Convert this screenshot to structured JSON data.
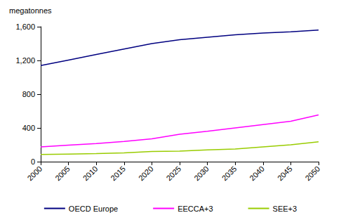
{
  "chart_data": {
    "type": "line",
    "y_label": "megatonnes",
    "categories": [
      "2000",
      "2005",
      "2010",
      "2015",
      "2020",
      "2025",
      "2030",
      "2035",
      "2040",
      "2045",
      "2050"
    ],
    "series": [
      {
        "name": "OECD Europe",
        "color": "#000080",
        "values": [
          1140,
          1205,
          1270,
          1335,
          1400,
          1445,
          1475,
          1505,
          1525,
          1540,
          1560
        ]
      },
      {
        "name": "EECCA+3",
        "color": "#ff00ff",
        "values": [
          175,
          195,
          215,
          240,
          270,
          325,
          360,
          400,
          440,
          480,
          555
        ]
      },
      {
        "name": "SEE+3",
        "color": "#99cc00",
        "values": [
          85,
          90,
          95,
          105,
          120,
          125,
          140,
          150,
          175,
          200,
          235
        ]
      }
    ],
    "ylim": [
      0,
      1600
    ],
    "yticks": [
      0,
      400,
      800,
      1200,
      1600
    ],
    "grid": false,
    "legend": "bottom"
  }
}
